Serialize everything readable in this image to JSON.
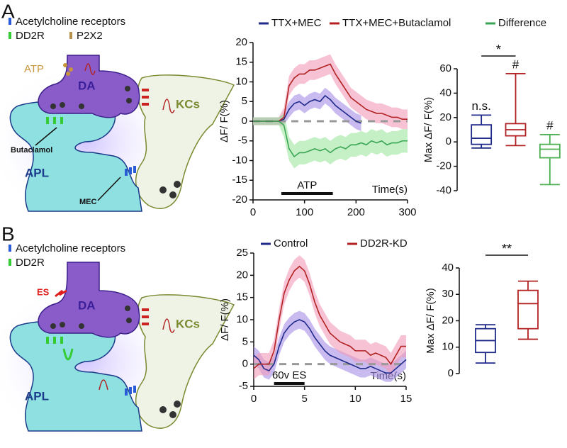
{
  "figure": {
    "panel_labels": [
      "A",
      "B"
    ],
    "schematics": [
      {
        "legend": [
          "Acetylcholine receptors",
          "DD2R",
          "P2X2"
        ],
        "labels": [
          "ATP",
          "DA",
          "KCs",
          "Butaclamol",
          "APL",
          "MEC"
        ]
      },
      {
        "legend": [
          "Acetylcholine receptors",
          "DD2R"
        ],
        "labels": [
          "ES",
          "DA",
          "KCs",
          "APL"
        ]
      }
    ]
  },
  "chart_data": [
    {
      "type": "line",
      "ylabel": "ΔF/ F(%)",
      "xlabel": "Time(s)",
      "legend": "top",
      "x": [
        0,
        10,
        20,
        30,
        40,
        50,
        60,
        70,
        80,
        90,
        100,
        110,
        120,
        130,
        140,
        150,
        160,
        170,
        180,
        190,
        200,
        210,
        220,
        230,
        240,
        250,
        260,
        270,
        280,
        290,
        300
      ],
      "xlim": [
        0,
        300
      ],
      "xticks": [
        0,
        100,
        200,
        300
      ],
      "ylim": [
        -20,
        20
      ],
      "yticks": [
        -20,
        -15,
        -10,
        -5,
        0,
        5,
        10,
        15,
        20
      ],
      "series": [
        {
          "name": "TTX+MEC",
          "color": "#1f2a8a",
          "band_color": "#a58ee6",
          "values": [
            0,
            0,
            0,
            0,
            0,
            0,
            0.5,
            3,
            4.5,
            5,
            4,
            5,
            5.5,
            5,
            6.5,
            5.5,
            4,
            3,
            2,
            1,
            0,
            -0.5,
            null,
            null,
            null,
            null,
            null,
            null,
            null,
            null,
            null
          ],
          "error": [
            1,
            1,
            1,
            1,
            1,
            1,
            1.5,
            2,
            2,
            2,
            2,
            2,
            2,
            2,
            2,
            2,
            2,
            2,
            2,
            2,
            2,
            2,
            null,
            null,
            null,
            null,
            null,
            null,
            null,
            null,
            null
          ]
        },
        {
          "name": "TTX+MEC+Butaclamol",
          "color": "#b22222",
          "band_color": "#f29ab8",
          "values": [
            0,
            0,
            0,
            0,
            0,
            0,
            1,
            9,
            11,
            12,
            12,
            13,
            13,
            13.5,
            14,
            14.5,
            12,
            10,
            8,
            6,
            5,
            4,
            3,
            2.5,
            2,
            2,
            1.5,
            1,
            1,
            0.5,
            0.5
          ],
          "error": [
            1,
            1,
            1,
            1,
            1,
            1,
            2.5,
            2.5,
            2.5,
            2.5,
            2.5,
            2.5,
            2.5,
            2.5,
            2.5,
            2.5,
            2.5,
            2.5,
            2.5,
            2.5,
            2.5,
            2.5,
            2.5,
            2.5,
            2.5,
            2.5,
            2.5,
            2.5,
            2.5,
            2.5,
            2.5
          ]
        },
        {
          "name": "Difference",
          "color": "#3aa655",
          "band_color": "#9fe6a0",
          "values": [
            0,
            0,
            0,
            0,
            0,
            0,
            -1,
            -7,
            -9,
            -8,
            -8,
            -7.5,
            -7,
            -7.5,
            -7,
            -8,
            -7,
            -6.5,
            -7,
            -6,
            -6,
            -5.5,
            -6,
            -5,
            -5.5,
            -5,
            -6,
            -5.5,
            -5.5,
            -5,
            -5
          ],
          "error": [
            1,
            1,
            1,
            1,
            1,
            1,
            3,
            3,
            3,
            3,
            3,
            3,
            3,
            3,
            3,
            3,
            3,
            3,
            3,
            3,
            3,
            3,
            3,
            3,
            3,
            3,
            3,
            3,
            3,
            3,
            3
          ]
        }
      ],
      "annotations": [
        {
          "text": "ATP",
          "x_start": 55,
          "x_end": 155
        }
      ]
    },
    {
      "type": "box",
      "ylabel": "Max ΔF/ F(%)",
      "ylim": [
        -40,
        60
      ],
      "yticks": [
        -40,
        -20,
        0,
        20,
        40,
        60
      ],
      "boxes": [
        {
          "color": "#1f2a8a",
          "min": -5,
          "q1": -2,
          "median": 3,
          "q3": 14,
          "max": 22
        },
        {
          "color": "#b22222",
          "min": -3,
          "q1": 5,
          "median": 10,
          "q3": 15,
          "max": 56
        },
        {
          "color": "#4caf50",
          "min": -35,
          "q1": -13,
          "median": -6,
          "q3": -2,
          "max": 6
        }
      ],
      "box_labels": [
        "n.s.",
        "#",
        "#"
      ],
      "significance": "*"
    },
    {
      "type": "line",
      "ylabel": "ΔF/ F(%)",
      "xlabel": "Time(s)",
      "legend": "top",
      "x": [
        0,
        0.5,
        1,
        1.5,
        2,
        2.5,
        3,
        3.5,
        4,
        4.5,
        5,
        5.5,
        6,
        6.5,
        7,
        7.5,
        8,
        8.5,
        9,
        9.5,
        10,
        10.5,
        11,
        11.5,
        12,
        12.5,
        13,
        13.5,
        14,
        14.5,
        15
      ],
      "xlim": [
        0,
        15
      ],
      "xticks": [
        0,
        5,
        10,
        15
      ],
      "ylim": [
        -5,
        25
      ],
      "yticks": [
        -5,
        0,
        5,
        10,
        15,
        20,
        25
      ],
      "series": [
        {
          "name": "Control",
          "color": "#1f2a8a",
          "band_color": "#a58ee6",
          "values": [
            2,
            1,
            -1,
            -1.5,
            0,
            4,
            7,
            8.5,
            9.5,
            10,
            9.5,
            8,
            6,
            4.5,
            3,
            2,
            1.5,
            1,
            0.5,
            0,
            -0.5,
            -1,
            -1,
            -0.5,
            -1,
            -1.5,
            -2,
            -2,
            -1,
            0,
            1
          ],
          "error": [
            2,
            2,
            2,
            2,
            2,
            2,
            2,
            2,
            2,
            2,
            2,
            2,
            2,
            2,
            2,
            2,
            2,
            2,
            2,
            2,
            2,
            2,
            2,
            2,
            2,
            2,
            2,
            2,
            2,
            2,
            2
          ]
        },
        {
          "name": "DD2R-KD",
          "color": "#b22222",
          "band_color": "#f29ab8",
          "values": [
            -1,
            0,
            0,
            0,
            3,
            10,
            16,
            19,
            21,
            22,
            21,
            18,
            14,
            11,
            9,
            7,
            6,
            5,
            4.5,
            4,
            3,
            3,
            3,
            2,
            2.5,
            2,
            1.5,
            0,
            2,
            4,
            4
          ],
          "error": [
            2.5,
            2.5,
            2.5,
            2.5,
            2.5,
            2.5,
            2.5,
            2.5,
            2.5,
            2.5,
            2.5,
            2.5,
            2.5,
            2.5,
            2.5,
            2.5,
            2.5,
            2.5,
            2.5,
            2.5,
            2.5,
            2.5,
            2.5,
            2.5,
            2.5,
            2.5,
            2.5,
            2.5,
            2.5,
            2.5,
            2.5
          ]
        }
      ],
      "annotations": [
        {
          "text": "60v ES",
          "x_start": 2,
          "x_end": 5
        }
      ]
    },
    {
      "type": "box",
      "ylabel": "Max ΔF/ F(%)",
      "ylim": [
        0,
        40
      ],
      "yticks": [
        0,
        10,
        20,
        30,
        40
      ],
      "boxes": [
        {
          "color": "#1f2a8a",
          "min": 4,
          "q1": 8,
          "median": 12.5,
          "q3": 17,
          "max": 18.5
        },
        {
          "color": "#b22222",
          "min": 13,
          "q1": 17,
          "median": 26.5,
          "q3": 31.5,
          "max": 35
        }
      ],
      "significance": "**"
    }
  ]
}
